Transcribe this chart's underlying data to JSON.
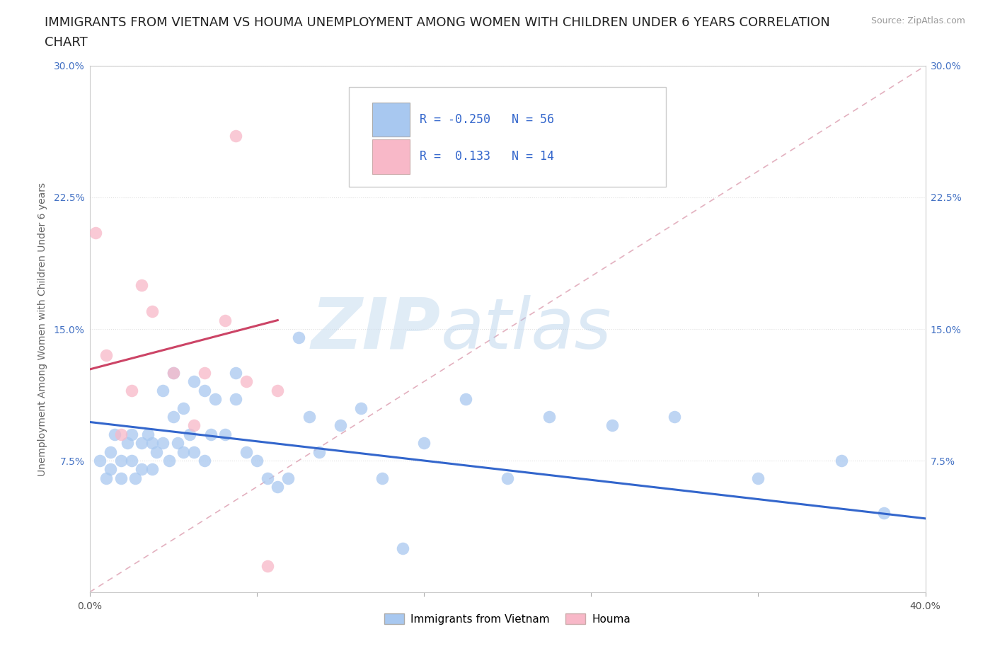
{
  "title_line1": "IMMIGRANTS FROM VIETNAM VS HOUMA UNEMPLOYMENT AMONG WOMEN WITH CHILDREN UNDER 6 YEARS CORRELATION",
  "title_line2": "CHART",
  "source_text": "Source: ZipAtlas.com",
  "ylabel": "Unemployment Among Women with Children Under 6 years",
  "xlim": [
    0.0,
    0.4
  ],
  "ylim": [
    0.0,
    0.3
  ],
  "xticks": [
    0.0,
    0.08,
    0.16,
    0.24,
    0.32,
    0.4
  ],
  "xtick_labels": [
    "0.0%",
    "",
    "",
    "",
    "",
    "40.0%"
  ],
  "yticks": [
    0.0,
    0.075,
    0.15,
    0.225,
    0.3
  ],
  "ytick_labels_left": [
    "",
    "7.5%",
    "15.0%",
    "22.5%",
    "30.0%"
  ],
  "ytick_labels_right": [
    "7.5%",
    "15.0%",
    "22.5%",
    "30.0%"
  ],
  "blue_scatter_x": [
    0.005,
    0.008,
    0.01,
    0.01,
    0.012,
    0.015,
    0.015,
    0.018,
    0.02,
    0.02,
    0.022,
    0.025,
    0.025,
    0.028,
    0.03,
    0.03,
    0.032,
    0.035,
    0.035,
    0.038,
    0.04,
    0.04,
    0.042,
    0.045,
    0.045,
    0.048,
    0.05,
    0.05,
    0.055,
    0.055,
    0.058,
    0.06,
    0.065,
    0.07,
    0.07,
    0.075,
    0.08,
    0.085,
    0.09,
    0.095,
    0.1,
    0.105,
    0.11,
    0.12,
    0.13,
    0.14,
    0.15,
    0.16,
    0.18,
    0.2,
    0.22,
    0.25,
    0.28,
    0.32,
    0.36,
    0.38
  ],
  "blue_scatter_y": [
    0.075,
    0.065,
    0.08,
    0.07,
    0.09,
    0.075,
    0.065,
    0.085,
    0.09,
    0.075,
    0.065,
    0.085,
    0.07,
    0.09,
    0.085,
    0.07,
    0.08,
    0.115,
    0.085,
    0.075,
    0.125,
    0.1,
    0.085,
    0.105,
    0.08,
    0.09,
    0.12,
    0.08,
    0.115,
    0.075,
    0.09,
    0.11,
    0.09,
    0.125,
    0.11,
    0.08,
    0.075,
    0.065,
    0.06,
    0.065,
    0.145,
    0.1,
    0.08,
    0.095,
    0.105,
    0.065,
    0.025,
    0.085,
    0.11,
    0.065,
    0.1,
    0.095,
    0.1,
    0.065,
    0.075,
    0.045
  ],
  "pink_scatter_x": [
    0.003,
    0.008,
    0.015,
    0.02,
    0.025,
    0.03,
    0.04,
    0.05,
    0.055,
    0.065,
    0.07,
    0.075,
    0.085,
    0.09
  ],
  "pink_scatter_y": [
    0.205,
    0.135,
    0.09,
    0.115,
    0.175,
    0.16,
    0.125,
    0.095,
    0.125,
    0.155,
    0.26,
    0.12,
    0.015,
    0.115
  ],
  "blue_line_x": [
    0.0,
    0.4
  ],
  "blue_line_y": [
    0.097,
    0.042
  ],
  "pink_line_x": [
    0.0,
    0.09
  ],
  "pink_line_y": [
    0.127,
    0.155
  ],
  "dash_line_x": [
    0.0,
    0.4
  ],
  "dash_line_y": [
    0.0,
    0.3
  ],
  "blue_scatter_color": "#a8c8f0",
  "pink_scatter_color": "#f8b8c8",
  "blue_line_color": "#3366cc",
  "pink_line_color": "#cc4466",
  "dash_line_color": "#e0a8b8",
  "grid_color": "#e0e0e0",
  "tick_color": "#4472c4",
  "ylabel_color": "#666666",
  "title_color": "#222222",
  "watermark_zip": "ZIP",
  "watermark_atlas": "atlas",
  "background_color": "#ffffff",
  "title_fontsize": 13,
  "ylabel_fontsize": 10,
  "tick_fontsize": 10,
  "legend_r1_label": "R = -0.250",
  "legend_n1_label": "N = 56",
  "legend_r2_label": "R =  0.133",
  "legend_n2_label": "N = 14",
  "bottom_legend_label1": "Immigrants from Vietnam",
  "bottom_legend_label2": "Houma"
}
